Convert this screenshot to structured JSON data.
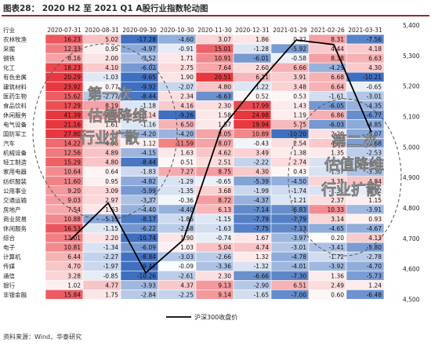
{
  "title": "图表28：  2020 H2 至 2021 Q1 A股行业指数轮动图",
  "source": "资料来源：Wind，华泰研究",
  "colors": {
    "negative_strong": "#3f6fbf",
    "neutral": "#ffffff",
    "positive_strong": "#e8383f",
    "line": "#000000",
    "title_rule": "#9a2a22"
  },
  "chart_data": [
    {
      "type": "heatmap",
      "corner_label": "行业",
      "columns": [
        "2020-07-31",
        "2020-08-31",
        "2020-09-30",
        "2020-10-30",
        "2020-11-30",
        "2020-12-31",
        "2021-01-29",
        "2021-02-26",
        "2021-03-31"
      ],
      "rows": [
        {
          "name": "农林牧渔",
          "values": [
            "16.23",
            "5.02",
            "-17.28",
            "-4.60",
            "3.07",
            "1.86",
            "0.32",
            "8.31",
            "-7.56"
          ]
        },
        {
          "name": "采掘",
          "values": [
            "12.33",
            "0.95",
            "-4.97",
            "-0.91",
            "15.01",
            "-1.28",
            "-5.92",
            "4.44",
            "4.18"
          ]
        },
        {
          "name": "钢铁",
          "values": [
            "8.16",
            "2.00",
            "-3.52",
            "1.71",
            "10.91",
            "-6.01",
            "-0.58",
            "8.38",
            "6.63"
          ]
        },
        {
          "name": "化工",
          "values": [
            "18.23",
            "4.10",
            "-6.02",
            "2.75",
            "7.64",
            "2.60",
            "6.66",
            "-4.29",
            "4.30"
          ]
        },
        {
          "name": "有色金属",
          "values": [
            "20.29",
            "-1.03",
            "-9.65",
            "1.90",
            "20.51",
            "6.11",
            "3.91",
            "6.68",
            "-10.21"
          ]
        },
        {
          "name": "建筑材料",
          "values": [
            "23.92",
            "0.77",
            "-9.92",
            "-2.07",
            "4.80",
            "-1.22",
            "3.48",
            "6.64",
            "-0.65"
          ]
        },
        {
          "name": "医药生物",
          "values": [
            "15.62",
            "-2.77",
            "-8.44",
            "2.34",
            "-6.63",
            "0.52",
            "0.53",
            "-1.61",
            "-3.01"
          ]
        },
        {
          "name": "食品饮料",
          "values": [
            "17.29",
            "8.19",
            "-1.18",
            "4.16",
            "2.30",
            "17.99",
            "1.43",
            "-6.05",
            "-4.35"
          ]
        },
        {
          "name": "休闲服务",
          "values": [
            "41.39",
            "7.95",
            "3.14",
            "-9.26",
            "1.58",
            "24.98",
            "1.19",
            "6.86",
            "-6.77"
          ]
        },
        {
          "name": "电气设备",
          "values": [
            "21.16",
            "1.61",
            "-1.16",
            "6.50",
            "1.57",
            "19.94",
            "5.75",
            "-6.03",
            "-4.85"
          ]
        },
        {
          "name": "国防军工",
          "values": [
            "27.80",
            "4.44",
            "-4.20",
            "-4.20",
            "8.05",
            "10.89",
            "-10.20",
            "2.20",
            "-5.07"
          ]
        },
        {
          "name": "汽车",
          "values": [
            "14.22",
            "4.96",
            "1.12",
            "11.59",
            "8.07",
            "-0.43",
            "2.54",
            "4.31",
            "-5.68"
          ]
        },
        {
          "name": "机械设备",
          "values": [
            "12.56",
            "4.89",
            "-4.15",
            "1.63",
            "4.62",
            "3.49",
            "1.38",
            "1.35",
            "-2.53"
          ]
        },
        {
          "name": "轻工制造",
          "values": [
            "15.29",
            "4.80",
            "-8.44",
            "0.51",
            "2.51",
            "-2.22",
            "2.74",
            "-1.35",
            "-2.23"
          ]
        },
        {
          "name": "家用电器",
          "values": [
            "10.64",
            "0.64",
            "-1.83",
            "7.27",
            "8.75",
            "4.30",
            "0.43",
            "-1.37",
            "-3.30"
          ]
        },
        {
          "name": "纺织服装",
          "values": [
            "11.60",
            "0.95",
            "-4.82",
            "-1.29",
            "-0.65",
            "-5.39",
            "-4.50",
            "3.35",
            "4.84"
          ]
        },
        {
          "name": "公用事业",
          "values": [
            "9.20",
            "3.09",
            "-5.99",
            "-1.35",
            "3.68",
            "-1.99",
            "-1.74",
            "-1.31",
            "-0.82"
          ]
        },
        {
          "name": "交通运输",
          "values": [
            "9.03",
            "2.97",
            "-3.37",
            "-0.36",
            "8.72",
            "-4.37",
            "-1.21",
            "2.37",
            "1.15"
          ]
        },
        {
          "name": "房地产",
          "values": [
            "7.54",
            "1.63",
            "-4.40",
            "-4.40",
            "6.13",
            "-7.14",
            "-6.83",
            "10.33",
            "-3.91"
          ]
        },
        {
          "name": "商业贸易",
          "values": [
            "10.88",
            "-5.15",
            "-8.17",
            "-1.86",
            "-1.15",
            "-7.79",
            "-7.79",
            "3.14",
            "0.93"
          ]
        },
        {
          "name": "休闲服务",
          "values": [
            "16.53",
            "-1.15",
            "-6.22",
            "-2.68",
            "-1.63",
            "-7.75",
            "-7.13",
            "-4.65",
            "-4.67"
          ]
        },
        {
          "name": "综合",
          "values": [
            "12.01",
            "2.20",
            "-10.74",
            "1.90",
            "-0.74",
            "1.67",
            "-3.97",
            "0.20",
            "4.13"
          ]
        },
        {
          "name": "电子",
          "values": [
            "10.81",
            "-1.34",
            "-6.09",
            "1.03",
            "5.04",
            "4.74",
            "-3.01",
            "-3.41",
            "-5.80"
          ]
        },
        {
          "name": "计算机",
          "values": [
            "6.44",
            "-2.27",
            "-8.84",
            "-3.03",
            "-2.66",
            "1.32",
            "-4.78",
            "-1.72",
            "-2.78"
          ]
        },
        {
          "name": "传媒",
          "values": [
            "4.70",
            "-1.97",
            "-9.47",
            "-0.09",
            "-3.36",
            "-1.32",
            "-4.01",
            "-3.92",
            "-4.70"
          ]
        },
        {
          "name": "通信",
          "values": [
            "3.28",
            "-0.85",
            "-10.26",
            "-2.61",
            "2.30",
            "-6.66",
            "-7.30",
            "1.36",
            "-5.73"
          ]
        },
        {
          "name": "银行",
          "values": [
            "1.02",
            "4.77",
            "-3.93",
            "4.37",
            "9.13",
            "-2.90",
            "6.51",
            "2.49",
            "1.24"
          ]
        },
        {
          "name": "非银金融",
          "values": [
            "15.84",
            "1.75",
            "-2.84",
            "-2.25",
            "9.14",
            "-1.65",
            "-7.00",
            "0.60",
            "-6.48"
          ]
        }
      ]
    },
    {
      "type": "line",
      "series": [
        {
          "name": "沪深300收盘价",
          "x": [
            "2020-07-31",
            "2020-08-31",
            "2020-09-30",
            "2020-10-30",
            "2020-11-30",
            "2020-12-31",
            "2021-01-29",
            "2021-02-26",
            "2021-03-31"
          ],
          "values": [
            4695,
            4816,
            4587,
            4695,
            5059,
            5211,
            5351,
            5336,
            5048
          ]
        }
      ],
      "y_axis": {
        "side": "right",
        "ylim": [
          4500,
          5400
        ],
        "ticks": [
          "5,400",
          "5,300",
          "5,200",
          "5,100",
          "5,000",
          "4,900",
          "4,800",
          "4,700",
          "4,600",
          "4,500"
        ]
      },
      "legend_position": "bottom-center"
    }
  ],
  "annotations": {
    "left": [
      "第一次",
      "估值降维",
      "行业扩散"
    ],
    "right": [
      "第二次",
      "估值降维",
      "行业扩散"
    ]
  }
}
